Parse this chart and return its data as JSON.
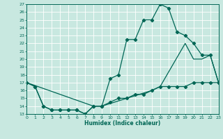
{
  "xlabel": "Humidex (Indice chaleur)",
  "bg_color": "#c8e8e0",
  "grid_color": "#ffffff",
  "line_color": "#006655",
  "xlim": [
    0,
    23
  ],
  "ylim": [
    13,
    27
  ],
  "xticks": [
    0,
    1,
    2,
    3,
    4,
    5,
    6,
    7,
    8,
    9,
    10,
    11,
    12,
    13,
    14,
    15,
    16,
    17,
    18,
    19,
    20,
    21,
    22,
    23
  ],
  "yticks": [
    13,
    14,
    15,
    16,
    17,
    18,
    19,
    20,
    21,
    22,
    23,
    24,
    25,
    26,
    27
  ],
  "series1_x": [
    0,
    1,
    2,
    3,
    4,
    5,
    6,
    7,
    8,
    9,
    10,
    11,
    12,
    13,
    14,
    15,
    16,
    17,
    18,
    19,
    20,
    21,
    22,
    23
  ],
  "series1_y": [
    17,
    16.5,
    14,
    13.5,
    13.5,
    13.5,
    13.5,
    13,
    14,
    14,
    17.5,
    18,
    22.5,
    22.5,
    25,
    25,
    27,
    26.5,
    23.5,
    23,
    22,
    20.5,
    20.5,
    17
  ],
  "series2_x": [
    0,
    1,
    2,
    3,
    4,
    5,
    6,
    7,
    8,
    9,
    10,
    11,
    12,
    13,
    14,
    15,
    16,
    17,
    18,
    19,
    20,
    21,
    22,
    23
  ],
  "series2_y": [
    17,
    16.5,
    14,
    13.5,
    13.5,
    13.5,
    13.5,
    13,
    14,
    14,
    14.5,
    15,
    15,
    15.5,
    15.5,
    16,
    16.5,
    16.5,
    16.5,
    16.5,
    17,
    17,
    17,
    17
  ],
  "series3_x": [
    0,
    8,
    9,
    15,
    16,
    19,
    20,
    21,
    22,
    23
  ],
  "series3_y": [
    17,
    14,
    14,
    16,
    16.5,
    22,
    20,
    20,
    20.5,
    17
  ]
}
